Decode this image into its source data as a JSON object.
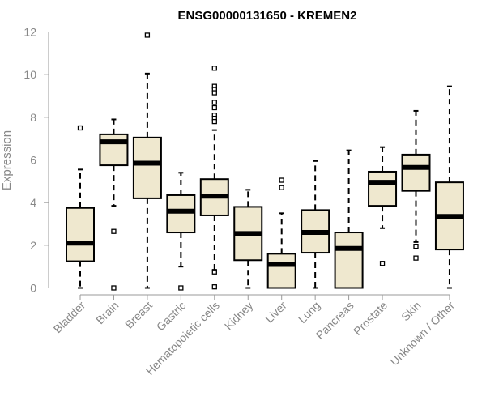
{
  "chart_data": {
    "type": "boxplot",
    "title": "ENSG00000131650 - KREMEN2",
    "xlabel": "",
    "ylabel": "Expression",
    "ylim": [
      0,
      12
    ],
    "yticks": [
      0,
      2,
      4,
      6,
      8,
      10,
      12
    ],
    "grid": false,
    "legend": "none",
    "colors": {
      "box_fill": "#efe8cf",
      "stroke": "#000000",
      "axis": "#999999",
      "tick_text": "#888888"
    },
    "categories": [
      "Bladder",
      "Brain",
      "Breast",
      "Gastric",
      "Hematopoietic cells",
      "Kidney",
      "Liver",
      "Lung",
      "Pancreas",
      "Prostate",
      "Skin",
      "Unknown / Other"
    ],
    "boxes": [
      {
        "category": "Bladder",
        "whisker_low": 0.0,
        "q1": 1.25,
        "median": 2.1,
        "q3": 3.75,
        "whisker_high": 5.55,
        "outliers": [
          7.5
        ]
      },
      {
        "category": "Brain",
        "whisker_low": 3.85,
        "q1": 5.75,
        "median": 6.85,
        "q3": 7.2,
        "whisker_high": 7.9,
        "outliers": [
          2.65,
          0.0
        ]
      },
      {
        "category": "Breast",
        "whisker_low": 0.0,
        "q1": 4.2,
        "median": 5.85,
        "q3": 7.05,
        "whisker_high": 10.05,
        "outliers": [
          11.85
        ]
      },
      {
        "category": "Gastric",
        "whisker_low": 1.0,
        "q1": 2.6,
        "median": 3.6,
        "q3": 4.35,
        "whisker_high": 5.4,
        "outliers": [
          0.0
        ]
      },
      {
        "category": "Hematopoietic cells",
        "whisker_low": 0.85,
        "q1": 3.4,
        "median": 4.3,
        "q3": 5.1,
        "whisker_high": 7.4,
        "outliers": [
          10.3,
          9.45,
          9.3,
          9.15,
          8.7,
          8.45,
          8.1,
          7.95,
          7.8,
          0.75,
          0.05
        ]
      },
      {
        "category": "Kidney",
        "whisker_low": 0.0,
        "q1": 1.3,
        "median": 2.55,
        "q3": 3.8,
        "whisker_high": 4.6,
        "outliers": []
      },
      {
        "category": "Liver",
        "whisker_low": 0.0,
        "q1": 0.0,
        "median": 1.1,
        "q3": 1.6,
        "whisker_high": 3.5,
        "outliers": [
          5.05,
          4.7
        ]
      },
      {
        "category": "Lung",
        "whisker_low": 0.0,
        "q1": 1.65,
        "median": 2.6,
        "q3": 3.65,
        "whisker_high": 5.95,
        "outliers": []
      },
      {
        "category": "Pancreas",
        "whisker_low": 0.0,
        "q1": 0.0,
        "median": 1.85,
        "q3": 2.6,
        "whisker_high": 6.45,
        "outliers": []
      },
      {
        "category": "Prostate",
        "whisker_low": 2.8,
        "q1": 3.85,
        "median": 4.95,
        "q3": 5.45,
        "whisker_high": 6.6,
        "outliers": [
          1.15
        ]
      },
      {
        "category": "Skin",
        "whisker_low": 2.15,
        "q1": 4.55,
        "median": 5.65,
        "q3": 6.25,
        "whisker_high": 8.3,
        "outliers": [
          1.95,
          1.4
        ]
      },
      {
        "category": "Unknown / Other",
        "whisker_low": 0.0,
        "q1": 1.8,
        "median": 3.35,
        "q3": 4.95,
        "whisker_high": 9.45,
        "outliers": []
      }
    ]
  }
}
